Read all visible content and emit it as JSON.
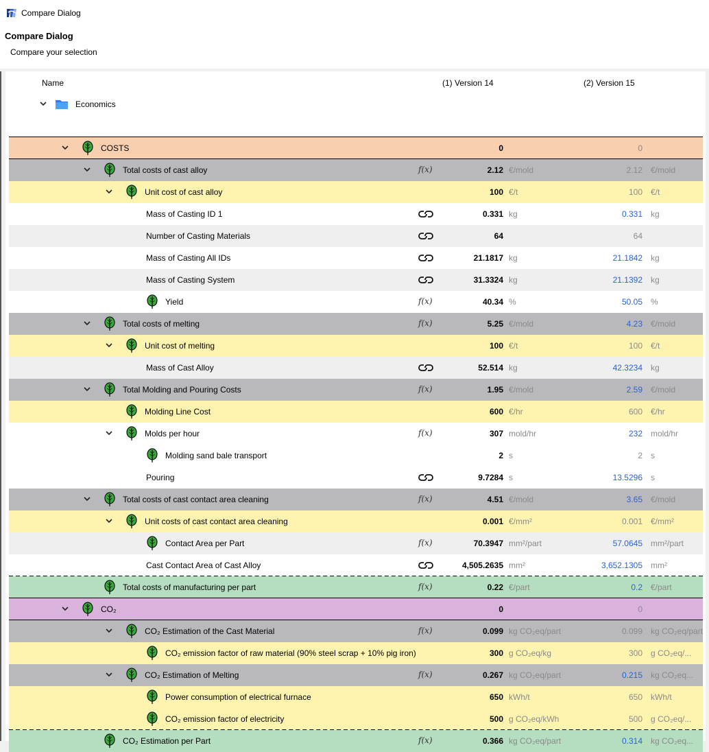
{
  "window": {
    "title": "Compare Dialog",
    "app_icon": "app-logo-icon"
  },
  "dialog": {
    "title": "Compare Dialog",
    "subtitle": "Compare your selection"
  },
  "columns": {
    "name": "Name",
    "version1": "(1) Version 14",
    "version2": "(2) Version 15"
  },
  "root": {
    "label": "Economics",
    "icon": "folder-cube-icon"
  },
  "colors": {
    "diff_value": "#2962d9",
    "costs_header": "#f8d0b0",
    "co2_header": "#d9b3dc",
    "total_row": "#b9b9bd",
    "unit_row": "#fff3b0",
    "result_row": "#b5ddc0",
    "leaf_green": "#3aa83a"
  },
  "rows": [
    {
      "name": "COSTS",
      "type": "costs",
      "level": 0,
      "chev": true,
      "leaf": true,
      "src": "",
      "v1": "0",
      "u1": "",
      "v2": "0",
      "u2": "",
      "diff": false
    },
    {
      "name": "Total costs of cast alloy",
      "type": "total",
      "level": 1,
      "chev": true,
      "leaf": true,
      "src": "fx",
      "v1": "2.12",
      "u1": "€/mold",
      "v2": "2.12",
      "u2": "€/mold",
      "diff": false
    },
    {
      "name": "Unit cost of cast alloy",
      "type": "unit",
      "level": 2,
      "chev": true,
      "leaf": true,
      "src": "",
      "v1": "100",
      "u1": "€/t",
      "v2": "100",
      "u2": "€/t",
      "diff": false
    },
    {
      "name": "Mass of Casting ID 1",
      "type": "plain",
      "level": 3,
      "chev": false,
      "leaf": false,
      "src": "link",
      "v1": "0.331",
      "u1": "kg",
      "v2": "0.331",
      "u2": "kg",
      "diff": true
    },
    {
      "name": "Number of Casting Materials",
      "type": "alt",
      "level": 3,
      "chev": false,
      "leaf": false,
      "src": "link",
      "v1": "64",
      "u1": "",
      "v2": "64",
      "u2": "",
      "diff": false
    },
    {
      "name": "Mass of Casting All IDs",
      "type": "plain",
      "level": 3,
      "chev": false,
      "leaf": false,
      "src": "link",
      "v1": "21.1817",
      "u1": "kg",
      "v2": "21.1842",
      "u2": "kg",
      "diff": true
    },
    {
      "name": "Mass of Casting System",
      "type": "alt",
      "level": 3,
      "chev": false,
      "leaf": false,
      "src": "link",
      "v1": "31.3324",
      "u1": "kg",
      "v2": "21.1392",
      "u2": "kg",
      "diff": true
    },
    {
      "name": "Yield",
      "type": "plain",
      "level": 3,
      "chev": false,
      "leaf": true,
      "src": "fx",
      "v1": "40.34",
      "u1": "%",
      "v2": "50.05",
      "u2": "%",
      "diff": true
    },
    {
      "name": "Total costs of melting",
      "type": "total",
      "level": 1,
      "chev": true,
      "leaf": true,
      "src": "fx",
      "v1": "5.25",
      "u1": "€/mold",
      "v2": "4.23",
      "u2": "€/mold",
      "diff": true
    },
    {
      "name": "Unit cost of melting",
      "type": "unit",
      "level": 2,
      "chev": true,
      "leaf": true,
      "src": "",
      "v1": "100",
      "u1": "€/t",
      "v2": "100",
      "u2": "€/t",
      "diff": false
    },
    {
      "name": "Mass of Cast Alloy",
      "type": "alt",
      "level": 3,
      "chev": false,
      "leaf": false,
      "src": "link",
      "v1": "52.514",
      "u1": "kg",
      "v2": "42.3234",
      "u2": "kg",
      "diff": true
    },
    {
      "name": "Total Molding and Pouring Costs",
      "type": "total",
      "level": 1,
      "chev": true,
      "leaf": true,
      "src": "fx",
      "v1": "1.95",
      "u1": "€/mold",
      "v2": "2.59",
      "u2": "€/mold",
      "diff": true
    },
    {
      "name": "Molding Line Cost",
      "type": "unit",
      "level": 2,
      "chev": false,
      "leaf": true,
      "src": "",
      "v1": "600",
      "u1": "€/hr",
      "v2": "600",
      "u2": "€/hr",
      "diff": false
    },
    {
      "name": "Molds per hour",
      "type": "plain",
      "level": 2,
      "chev": true,
      "leaf": true,
      "src": "fx",
      "v1": "307",
      "u1": "mold/hr",
      "v2": "232",
      "u2": "mold/hr",
      "diff": true
    },
    {
      "name": "Molding sand bale transport",
      "type": "plain",
      "level": 3,
      "chev": false,
      "leaf": true,
      "src": "",
      "v1": "2",
      "u1": "s",
      "v2": "2",
      "u2": "s",
      "diff": false
    },
    {
      "name": "Pouring",
      "type": "plain",
      "level": 3,
      "chev": false,
      "leaf": false,
      "src": "link",
      "v1": "9.7284",
      "u1": "s",
      "v2": "13.5296",
      "u2": "s",
      "diff": true
    },
    {
      "name": "Total costs of cast contact area cleaning",
      "type": "total",
      "level": 1,
      "chev": true,
      "leaf": true,
      "src": "fx",
      "v1": "4.51",
      "u1": "€/mold",
      "v2": "3.65",
      "u2": "€/mold",
      "diff": true
    },
    {
      "name": "Unit costs of cast contact area cleaning",
      "type": "unit",
      "level": 2,
      "chev": true,
      "leaf": true,
      "src": "",
      "v1": "0.001",
      "u1": "€/mm²",
      "v2": "0.001",
      "u2": "€/mm²",
      "diff": false
    },
    {
      "name": "Contact Area per Part",
      "type": "alt",
      "level": 3,
      "chev": false,
      "leaf": true,
      "src": "fx",
      "v1": "70.3947",
      "u1": "mm²/part",
      "v2": "57.0645",
      "u2": "mm²/part",
      "diff": true
    },
    {
      "name": "Cast Contact Area of Cast Alloy",
      "type": "plain",
      "level": 3,
      "chev": false,
      "leaf": false,
      "src": "link",
      "v1": "4,505.2635",
      "u1": "mm²",
      "v2": "3,652.1305",
      "u2": "mm²",
      "diff": true
    },
    {
      "name": "Total costs of manufacturing per part",
      "type": "green",
      "level": 1,
      "chev": false,
      "leaf": true,
      "src": "fx",
      "v1": "0.22",
      "u1": "€/part",
      "v2": "0.2",
      "u2": "€/part",
      "diff": true
    },
    {
      "name": "CO₂",
      "type": "co2",
      "level": 0,
      "chev": true,
      "leaf": true,
      "src": "",
      "v1": "0",
      "u1": "",
      "v2": "0",
      "u2": "",
      "diff": false
    },
    {
      "name": "CO₂ Estimation of the Cast Material",
      "type": "total",
      "level": 2,
      "chev": true,
      "leaf": true,
      "src": "fx",
      "v1": "0.099",
      "u1": "kg CO₂eq/part",
      "v2": "0.099",
      "u2": "kg CO₂eq/part",
      "diff": false
    },
    {
      "name": "CO₂ emission factor of raw material (90% steel scrap + 10% pig iron)",
      "type": "unit",
      "level": 3,
      "chev": false,
      "leaf": true,
      "src": "",
      "v1": "300",
      "u1": "g CO₂eq/kg",
      "v2": "300",
      "u2": "g CO₂eq/...",
      "diff": false
    },
    {
      "name": "CO₂ Estimation of Melting",
      "type": "total",
      "level": 2,
      "chev": true,
      "leaf": true,
      "src": "fx",
      "v1": "0.267",
      "u1": "kg CO₂eq/part",
      "v2": "0.215",
      "u2": "kg CO₂eq...",
      "diff": true
    },
    {
      "name": "Power consumption of electrical furnace",
      "type": "unit",
      "level": 3,
      "chev": false,
      "leaf": true,
      "src": "",
      "v1": "650",
      "u1": "kWh/t",
      "v2": "650",
      "u2": "kWh/t",
      "diff": false
    },
    {
      "name": "CO₂ emission factor of electricity",
      "type": "unit",
      "level": 3,
      "chev": false,
      "leaf": true,
      "src": "",
      "v1": "500",
      "u1": "g CO₂eq/kWh",
      "v2": "500",
      "u2": "g CO₂eq/...",
      "diff": false
    },
    {
      "name": "CO₂ Estimation per Part",
      "type": "green",
      "level": 1,
      "chev": false,
      "leaf": true,
      "src": "fx",
      "v1": "0.366",
      "u1": "kg CO₂eq/part",
      "v2": "0.314",
      "u2": "kg CO₂eq...",
      "diff": true
    }
  ]
}
